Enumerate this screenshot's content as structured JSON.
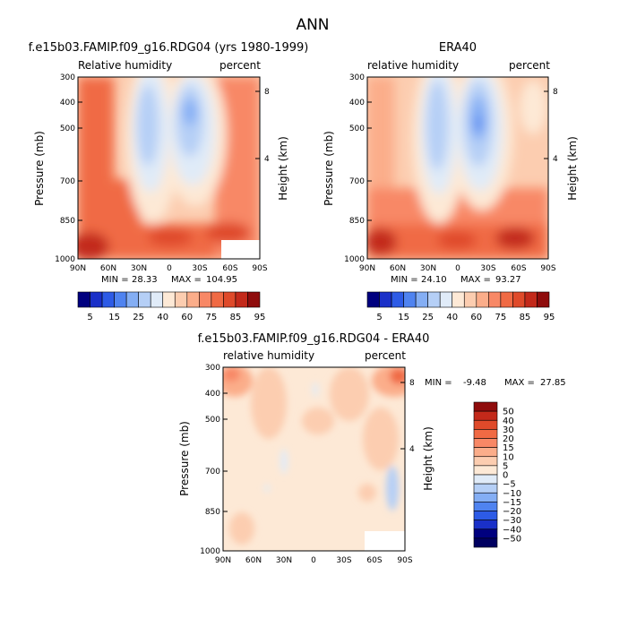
{
  "page_title": "ANN",
  "chart_data": [
    {
      "type": "heatmap",
      "title": "f.e15b03.FAMIP.f09_g16.RDG04 (yrs 1980-1999)",
      "left_label": "Relative humidity",
      "right_label": "percent",
      "ylabel": "Pressure (mb)",
      "y2label": "Height (km)",
      "x_ticks": [
        "90N",
        "60N",
        "30N",
        "0",
        "30S",
        "60S",
        "90S"
      ],
      "y_ticks": [
        300,
        400,
        500,
        700,
        850,
        1000
      ],
      "y2_ticks": [
        8,
        4
      ],
      "min_label": "MIN =",
      "min": "28.33",
      "max_label": "MAX =",
      "max": "104.95"
    },
    {
      "type": "heatmap",
      "title": "ERA40",
      "left_label": "relative humidity",
      "right_label": "percent",
      "ylabel": "Pressure (mb)",
      "y2label": "Height (km)",
      "x_ticks": [
        "90N",
        "60N",
        "30N",
        "0",
        "30S",
        "60S",
        "90S"
      ],
      "y_ticks": [
        300,
        400,
        500,
        700,
        850,
        1000
      ],
      "y2_ticks": [
        8,
        4
      ],
      "min_label": "MIN =",
      "min": "24.10",
      "max_label": "MAX =",
      "max": "93.27"
    },
    {
      "type": "heatmap",
      "title": "f.e15b03.FAMIP.f09_g16.RDG04 - ERA40",
      "left_label": "relative humidity",
      "right_label": "percent",
      "ylabel": "Pressure (mb)",
      "y2label": "Height (km)",
      "x_ticks": [
        "90N",
        "60N",
        "30N",
        "0",
        "30S",
        "60S",
        "90S"
      ],
      "y_ticks": [
        300,
        400,
        500,
        700,
        850,
        1000
      ],
      "y2_ticks": [
        8,
        4
      ],
      "min_label": "MIN =",
      "min": "-9.48",
      "max_label": "MAX =",
      "max": "27.85"
    }
  ],
  "legend_top": {
    "labels": [
      "5",
      "15",
      "25",
      "40",
      "60",
      "75",
      "85",
      "95"
    ],
    "colors": [
      "#00007f",
      "#1a30c8",
      "#2d5be6",
      "#4f83f0",
      "#84aef4",
      "#b5cff6",
      "#e0ebf8",
      "#fde9d6",
      "#fccdb0",
      "#fbad8a",
      "#f88866",
      "#f06a44",
      "#df4a2a",
      "#c3291a",
      "#8f0c0c"
    ]
  },
  "legend_bottom": {
    "labels": [
      "50",
      "40",
      "30",
      "20",
      "15",
      "10",
      "5",
      "0",
      "−5",
      "−10",
      "−15",
      "−20",
      "−30",
      "−40",
      "−50"
    ],
    "colors": [
      "#8f0c0c",
      "#c3291a",
      "#df4a2a",
      "#f06a44",
      "#f88866",
      "#fbad8a",
      "#fccdb0",
      "#fde9d6",
      "#e0ebf8",
      "#b5cff6",
      "#84aef4",
      "#4f83f0",
      "#2d5be6",
      "#1a30c8",
      "#00007f",
      "#000060"
    ]
  }
}
